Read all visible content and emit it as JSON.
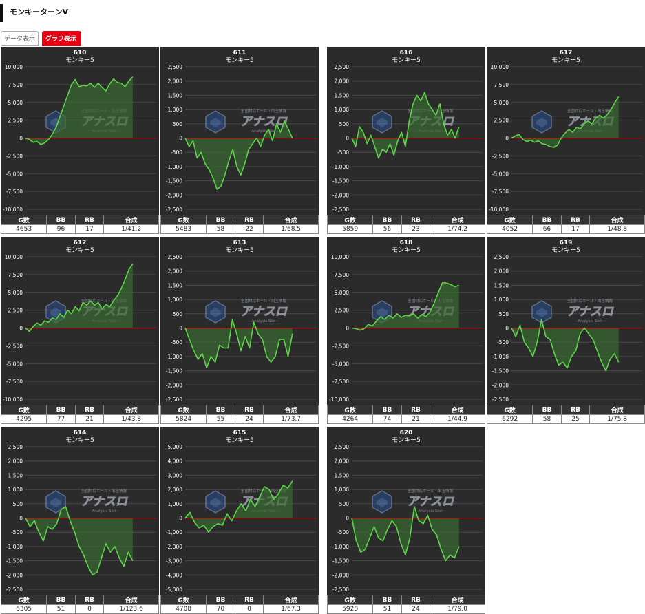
{
  "page": {
    "title": "モンキーターンV",
    "tab_data": "データ表示",
    "tab_graph": "グラフ表示"
  },
  "watermark": {
    "main": "アナスロ",
    "top": "全国対応ホール・出玉情報",
    "sub": "---Analysis Slot---"
  },
  "stats_headers": [
    "G数",
    "BB",
    "RB",
    "合成"
  ],
  "colors": {
    "background": "#2b2b2b",
    "line": "#5ed64a",
    "zero_line": "#cc0000",
    "fill": "#3a6b32"
  },
  "machines": [
    {
      "number": "610",
      "name": "モンキー5",
      "ylim": [
        -10000,
        10000
      ],
      "ticks": [
        "10,000",
        "7,500",
        "5,000",
        "2,500",
        "0",
        "-2,500",
        "-5,000",
        "-7,500",
        "-10,000"
      ],
      "stats": {
        "games": "4653",
        "bb": "96",
        "rb": "17",
        "combined": "1/41.2"
      },
      "series": [
        0,
        -200,
        -600,
        -500,
        -900,
        -700,
        -200,
        500,
        1500,
        3000,
        4500,
        6000,
        7500,
        8200,
        7200,
        7400,
        7300,
        7700,
        7100,
        7700,
        7100,
        6600,
        7600,
        8300,
        7800,
        7700,
        7200,
        8000,
        8600
      ]
    },
    {
      "number": "611",
      "name": "モンキー5",
      "ylim": [
        -2500,
        2500
      ],
      "ticks": [
        "2,500",
        "2,000",
        "1,500",
        "1,000",
        "500",
        "0",
        "-500",
        "-1,000",
        "-1,500",
        "-2,000",
        "-2,500"
      ],
      "stats": {
        "games": "5483",
        "bb": "58",
        "rb": "22",
        "combined": "1/68.5"
      },
      "series": [
        0,
        -300,
        -100,
        -700,
        -500,
        -900,
        -1100,
        -1400,
        -1800,
        -1700,
        -1300,
        -800,
        -400,
        -1000,
        -1300,
        -900,
        -400,
        -200,
        0,
        -300,
        100,
        300,
        -100,
        500,
        200,
        600,
        300,
        0
      ]
    },
    {
      "number": "616",
      "name": "モンキー5",
      "ylim": [
        -2500,
        2500
      ],
      "ticks": [
        "2,500",
        "2,000",
        "1,500",
        "1,000",
        "500",
        "0",
        "-500",
        "-1,000",
        "-1,500",
        "-2,000",
        "-2,500"
      ],
      "stats": {
        "games": "5859",
        "bb": "56",
        "rb": "23",
        "combined": "1/74.2"
      },
      "series": [
        0,
        -300,
        400,
        200,
        -200,
        100,
        -300,
        -700,
        -400,
        -500,
        -200,
        -600,
        -100,
        200,
        -300,
        600,
        1200,
        1500,
        1300,
        1600,
        1200,
        1000,
        800,
        1200,
        500,
        100,
        300,
        0,
        400
      ]
    },
    {
      "number": "617",
      "name": "モンキー5",
      "ylim": [
        -10000,
        10000
      ],
      "ticks": [
        "10,000",
        "7,500",
        "5,000",
        "2,500",
        "0",
        "-2,500",
        "-5,000",
        "-7,500",
        "-10,000"
      ],
      "stats": {
        "games": "4052",
        "bb": "66",
        "rb": "17",
        "combined": "1/48.8"
      },
      "series": [
        0,
        300,
        500,
        -200,
        -500,
        -300,
        -600,
        -400,
        -800,
        -900,
        -1200,
        -1300,
        -1000,
        0,
        700,
        1200,
        800,
        1500,
        1300,
        2000,
        2400,
        2000,
        2800,
        3200,
        2800,
        3300,
        4000,
        5000,
        5800
      ]
    },
    {
      "number": "612",
      "name": "モンキー5",
      "ylim": [
        -10000,
        10000
      ],
      "ticks": [
        "10,000",
        "7,500",
        "5,000",
        "2,500",
        "0",
        "-2,500",
        "-5,000",
        "-7,500",
        "-10,000"
      ],
      "stats": {
        "games": "4295",
        "bb": "77",
        "rb": "21",
        "combined": "1/43.8"
      },
      "series": [
        0,
        -500,
        200,
        700,
        400,
        1000,
        800,
        1400,
        1200,
        2000,
        1500,
        2500,
        2000,
        3000,
        2400,
        3600,
        3200,
        3800,
        3200,
        3600,
        2700,
        3300,
        3000,
        3800,
        4500,
        5500,
        6800,
        8200,
        9000
      ]
    },
    {
      "number": "613",
      "name": "モンキー5",
      "ylim": [
        -2500,
        2500
      ],
      "ticks": [
        "2,500",
        "2,000",
        "1,500",
        "1,000",
        "500",
        "0",
        "-500",
        "-1,000",
        "-1,500",
        "-2,000",
        "-2,500"
      ],
      "stats": {
        "games": "5824",
        "bb": "55",
        "rb": "24",
        "combined": "1/73.7"
      },
      "series": [
        0,
        -400,
        -800,
        -1100,
        -900,
        -1400,
        -1000,
        -1200,
        -600,
        -700,
        -700,
        300,
        -200,
        -800,
        -300,
        -700,
        200,
        -200,
        -400,
        -1000,
        -1200,
        -1000,
        -400,
        -400,
        -1000,
        -200
      ]
    },
    {
      "number": "618",
      "name": "モンキー5",
      "ylim": [
        -10000,
        10000
      ],
      "ticks": [
        "10,000",
        "7,500",
        "5,000",
        "2,500",
        "0",
        "-2,500",
        "-5,000",
        "-7,500",
        "-10,000"
      ],
      "stats": {
        "games": "4264",
        "bb": "74",
        "rb": "21",
        "combined": "1/44.9"
      },
      "series": [
        0,
        -100,
        -300,
        -100,
        500,
        300,
        1000,
        1600,
        1200,
        1800,
        1400,
        2000,
        1500,
        1800,
        1700,
        2000,
        1400,
        1900,
        1600,
        2300,
        3500,
        5000,
        6400,
        6300,
        6100,
        5800,
        6000
      ]
    },
    {
      "number": "619",
      "name": "モンキー5",
      "ylim": [
        -2500,
        2500
      ],
      "ticks": [
        "2,500",
        "2,000",
        "1,500",
        "1,000",
        "500",
        "0",
        "-500",
        "-1,000",
        "-1,500",
        "-2,000",
        "-2,500"
      ],
      "stats": {
        "games": "6292",
        "bb": "58",
        "rb": "25",
        "combined": "1/75.8"
      },
      "series": [
        0,
        -300,
        100,
        -500,
        -700,
        -1000,
        -500,
        300,
        -300,
        -400,
        -900,
        -1300,
        -1200,
        -1400,
        -1000,
        -800,
        -200,
        0,
        -200,
        -400,
        -800,
        -1200,
        -1500,
        -1100,
        -900,
        -1200
      ]
    },
    {
      "number": "614",
      "name": "モンキー5",
      "ylim": [
        -2500,
        2500
      ],
      "ticks": [
        "2,500",
        "2,000",
        "1,500",
        "1,000",
        "500",
        "0",
        "-500",
        "-1,000",
        "-1,500",
        "-2,000",
        "-2,500"
      ],
      "stats": {
        "games": "6305",
        "bb": "51",
        "rb": "0",
        "combined": "1/123.6"
      },
      "series": [
        0,
        -300,
        -100,
        -500,
        -800,
        -300,
        -400,
        -200,
        300,
        400,
        -100,
        -500,
        -1000,
        -1300,
        -1700,
        -2000,
        -1900,
        -1400,
        -900,
        -1200,
        -1000,
        -1400,
        -1700,
        -1200,
        -1500
      ]
    },
    {
      "number": "615",
      "name": "モンキー5",
      "ylim": [
        -5000,
        5000
      ],
      "ticks": [
        "5,000",
        "4,000",
        "3,000",
        "2,000",
        "1,000",
        "0",
        "-1,000",
        "-2,000",
        "-3,000",
        "-4,000",
        "-5,000"
      ],
      "stats": {
        "games": "4708",
        "bb": "70",
        "rb": "0",
        "combined": "1/67.3"
      },
      "series": [
        0,
        400,
        -300,
        -700,
        -500,
        -1000,
        -600,
        -400,
        -500,
        300,
        -200,
        500,
        1000,
        500,
        1300,
        800,
        1500,
        2200,
        2000,
        1300,
        1700,
        2300,
        2100,
        2600
      ]
    },
    {
      "number": "620",
      "name": "モンキー5",
      "ylim": [
        -2500,
        2500
      ],
      "ticks": [
        "2,500",
        "2,000",
        "1,500",
        "1,000",
        "500",
        "0",
        "-500",
        "-1,000",
        "-1,500",
        "-2,000",
        "-2,500"
      ],
      "stats": {
        "games": "5928",
        "bb": "51",
        "rb": "24",
        "combined": "1/79.0"
      },
      "series": [
        0,
        -800,
        -1200,
        -1100,
        -700,
        -300,
        -700,
        -800,
        -400,
        -100,
        -300,
        -900,
        -1300,
        -700,
        400,
        -100,
        -200,
        100,
        -400,
        -600,
        -1100,
        -1500,
        -1300,
        -1400,
        -1000
      ]
    }
  ]
}
